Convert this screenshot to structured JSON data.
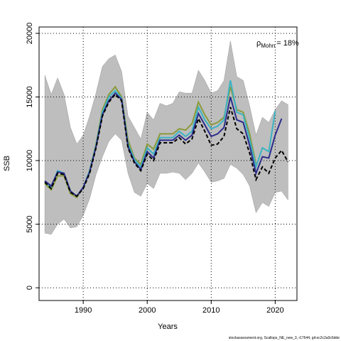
{
  "chart_data": {
    "type": "line",
    "xlabel": "Years",
    "ylabel": "SSB",
    "annotation": {
      "symbol": "ρ",
      "subscript": "Mohn",
      "text": "= 18%"
    },
    "footer": "stockassessment.org, Scallops_NE_new_3, r17644, git:ec2c2a0c6dde",
    "x": [
      1984,
      1985,
      1986,
      1987,
      1988,
      1989,
      1990,
      1991,
      1992,
      1993,
      1994,
      1995,
      1996,
      1997,
      1998,
      1999,
      2000,
      2001,
      2002,
      2003,
      2004,
      2005,
      2006,
      2007,
      2008,
      2009,
      2010,
      2011,
      2012,
      2013,
      2014,
      2015,
      2016,
      2017,
      2018,
      2019,
      2020,
      2021,
      2022
    ],
    "xlim": [
      1983.1,
      2023.4
    ],
    "xticks": [
      1990,
      2000,
      2010,
      2020
    ],
    "ylim": [
      -1000,
      20500
    ],
    "yticks": [
      0,
      5000,
      10000,
      15000,
      20000
    ],
    "grid": true,
    "band": {
      "color": "#bebebe",
      "upper": [
        16700,
        15200,
        16500,
        15200,
        12600,
        11300,
        12000,
        13500,
        15300,
        17400,
        18000,
        18300,
        17000,
        13500,
        12600,
        11700,
        13800,
        13200,
        14500,
        14300,
        14500,
        15400,
        15300,
        15300,
        17100,
        16300,
        15300,
        15500,
        16300,
        19400,
        16600,
        16300,
        14300,
        12000,
        13400,
        13000,
        14000,
        14700,
        14400
      ],
      "lower": [
        4300,
        4200,
        5000,
        5400,
        4700,
        4800,
        5700,
        7000,
        8900,
        10300,
        11500,
        12100,
        11600,
        9000,
        7500,
        7200,
        8200,
        7800,
        9000,
        9000,
        9100,
        9000,
        8500,
        9000,
        9800,
        9100,
        8300,
        8400,
        8600,
        9700,
        9400,
        8900,
        8000,
        5900,
        6700,
        6400,
        7500,
        7600,
        6900
      ]
    },
    "series": [
      {
        "color": "#8a9a3a",
        "values": [
          8200,
          7700,
          8800,
          8800,
          7400,
          7100,
          7900,
          9200,
          11300,
          14000,
          15200,
          15800,
          15000,
          11600,
          10200,
          9700,
          11300,
          10900,
          12100,
          12100,
          12100,
          12500,
          12400,
          12900,
          14600,
          13600,
          12800,
          13000,
          13400,
          15800,
          14000,
          13800,
          12100,
          9700,
          null,
          null,
          null,
          null,
          null
        ]
      },
      {
        "color": "#3bb3c3",
        "values": [
          8300,
          7900,
          9200,
          9000,
          7600,
          7200,
          7900,
          9200,
          11200,
          13800,
          15000,
          15500,
          14900,
          11300,
          10100,
          9500,
          11000,
          10500,
          11800,
          11800,
          11800,
          12300,
          11900,
          12300,
          14200,
          13200,
          12500,
          12700,
          13200,
          16300,
          13800,
          13600,
          11700,
          9500,
          11000,
          10700,
          13900,
          null,
          null
        ]
      },
      {
        "color": "#2c2c8c",
        "values": [
          8400,
          8000,
          9100,
          9000,
          7600,
          7200,
          7900,
          9100,
          11100,
          13600,
          14700,
          15300,
          14800,
          11100,
          9900,
          9300,
          10700,
          10200,
          11600,
          11600,
          11600,
          12000,
          11600,
          12000,
          13700,
          12800,
          11900,
          12100,
          12600,
          15000,
          13200,
          13000,
          11200,
          9000,
          10300,
          10200,
          12000,
          13300,
          null
        ]
      },
      {
        "color": "#000000",
        "dashed": true,
        "values": [
          8300,
          7800,
          9000,
          8900,
          7500,
          7200,
          7800,
          9000,
          11000,
          13500,
          14600,
          15200,
          14700,
          11000,
          9800,
          9200,
          10500,
          10000,
          11400,
          11400,
          11400,
          11800,
          11300,
          11700,
          13300,
          12300,
          11200,
          11300,
          11900,
          14200,
          12500,
          12100,
          10600,
          8500,
          9500,
          9000,
          10200,
          10800,
          9900
        ]
      }
    ]
  }
}
